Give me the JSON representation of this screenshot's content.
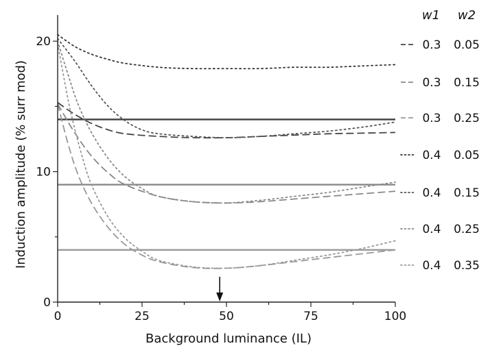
{
  "chart_data": {
    "type": "line",
    "xlabel": "Background luminance (IL)",
    "ylabel": "Induction amplitude (% surr mod)",
    "xlim": [
      0,
      100
    ],
    "ylim": [
      0,
      22
    ],
    "x_ticks": [
      0,
      25,
      50,
      75,
      100
    ],
    "y_ticks": [
      0,
      10,
      20
    ],
    "legend_headers": [
      "w1",
      "w2"
    ],
    "legend_placement": "right",
    "grid": false,
    "colors": {
      "dark": "#444444",
      "mid": "#888888",
      "light": "#aaaaaa",
      "axis": "#222222"
    },
    "annotation": {
      "type": "arrow",
      "x": 48,
      "note": "downward arrow at x≈48"
    },
    "reference_lines": [
      {
        "y": 14,
        "color": "#444444"
      },
      {
        "y": 9,
        "color": "#888888"
      },
      {
        "y": 4,
        "color": "#999999"
      }
    ],
    "series": [
      {
        "name": "0.3 0.05",
        "w1": "0.3",
        "w2": "0.05",
        "style": "dashed",
        "color": "#444444",
        "points": [
          [
            0,
            15.3
          ],
          [
            5,
            14.4
          ],
          [
            10,
            13.7
          ],
          [
            15,
            13.2
          ],
          [
            20,
            12.9
          ],
          [
            30,
            12.7
          ],
          [
            40,
            12.6
          ],
          [
            50,
            12.6
          ],
          [
            60,
            12.7
          ],
          [
            70,
            12.8
          ],
          [
            80,
            12.9
          ],
          [
            90,
            12.95
          ],
          [
            100,
            13
          ]
        ]
      },
      {
        "name": "0.3 0.15",
        "w1": "0.3",
        "w2": "0.15",
        "style": "dashed",
        "color": "#888888",
        "points": [
          [
            0,
            15.2
          ],
          [
            5,
            13
          ],
          [
            10,
            11.2
          ],
          [
            15,
            9.9
          ],
          [
            20,
            9
          ],
          [
            30,
            8.1
          ],
          [
            40,
            7.7
          ],
          [
            50,
            7.6
          ],
          [
            60,
            7.7
          ],
          [
            70,
            7.9
          ],
          [
            80,
            8.1
          ],
          [
            90,
            8.3
          ],
          [
            100,
            8.5
          ]
        ]
      },
      {
        "name": "0.3 0.25",
        "w1": "0.3",
        "w2": "0.25",
        "style": "dashed",
        "color": "#999999",
        "points": [
          [
            0,
            15.2
          ],
          [
            3,
            12.2
          ],
          [
            6,
            9.8
          ],
          [
            10,
            7.6
          ],
          [
            15,
            5.7
          ],
          [
            20,
            4.4
          ],
          [
            25,
            3.6
          ],
          [
            30,
            3.1
          ],
          [
            40,
            2.65
          ],
          [
            50,
            2.6
          ],
          [
            60,
            2.8
          ],
          [
            70,
            3.1
          ],
          [
            80,
            3.4
          ],
          [
            90,
            3.7
          ],
          [
            100,
            4
          ]
        ]
      },
      {
        "name": "0.4 0.05",
        "w1": "0.4",
        "w2": "0.05",
        "style": "dotted",
        "color": "#333333",
        "points": [
          [
            0,
            20.5
          ],
          [
            5,
            19.6
          ],
          [
            10,
            19
          ],
          [
            15,
            18.6
          ],
          [
            20,
            18.3
          ],
          [
            30,
            18
          ],
          [
            40,
            17.9
          ],
          [
            50,
            17.9
          ],
          [
            60,
            17.9
          ],
          [
            70,
            18
          ],
          [
            80,
            18
          ],
          [
            90,
            18.1
          ],
          [
            100,
            18.2
          ]
        ]
      },
      {
        "name": "0.4 0.15",
        "w1": "0.4",
        "w2": "0.15",
        "style": "dotted",
        "color": "#555555",
        "points": [
          [
            0,
            20.2
          ],
          [
            5,
            18.5
          ],
          [
            10,
            16.6
          ],
          [
            15,
            15
          ],
          [
            20,
            13.9
          ],
          [
            25,
            13.2
          ],
          [
            30,
            12.9
          ],
          [
            40,
            12.7
          ],
          [
            50,
            12.6
          ],
          [
            60,
            12.7
          ],
          [
            70,
            12.9
          ],
          [
            80,
            13.1
          ],
          [
            90,
            13.4
          ],
          [
            100,
            13.8
          ]
        ]
      },
      {
        "name": "0.4 0.25",
        "w1": "0.4",
        "w2": "0.25",
        "style": "dotted",
        "color": "#888888",
        "points": [
          [
            0,
            20
          ],
          [
            3,
            17.5
          ],
          [
            6,
            15.2
          ],
          [
            10,
            13
          ],
          [
            15,
            11
          ],
          [
            20,
            9.6
          ],
          [
            25,
            8.7
          ],
          [
            30,
            8.1
          ],
          [
            40,
            7.7
          ],
          [
            50,
            7.6
          ],
          [
            60,
            7.8
          ],
          [
            70,
            8.1
          ],
          [
            80,
            8.4
          ],
          [
            90,
            8.8
          ],
          [
            100,
            9.2
          ]
        ]
      },
      {
        "name": "0.4 0.35",
        "w1": "0.4",
        "w2": "0.35",
        "style": "dotted",
        "color": "#999999",
        "points": [
          [
            0,
            19.8
          ],
          [
            2,
            17
          ],
          [
            4,
            14.4
          ],
          [
            7,
            11.4
          ],
          [
            10,
            9
          ],
          [
            15,
            6.5
          ],
          [
            20,
            4.9
          ],
          [
            25,
            3.9
          ],
          [
            30,
            3.2
          ],
          [
            40,
            2.7
          ],
          [
            50,
            2.6
          ],
          [
            60,
            2.8
          ],
          [
            70,
            3.2
          ],
          [
            80,
            3.6
          ],
          [
            90,
            4.1
          ],
          [
            100,
            4.7
          ]
        ]
      }
    ]
  }
}
